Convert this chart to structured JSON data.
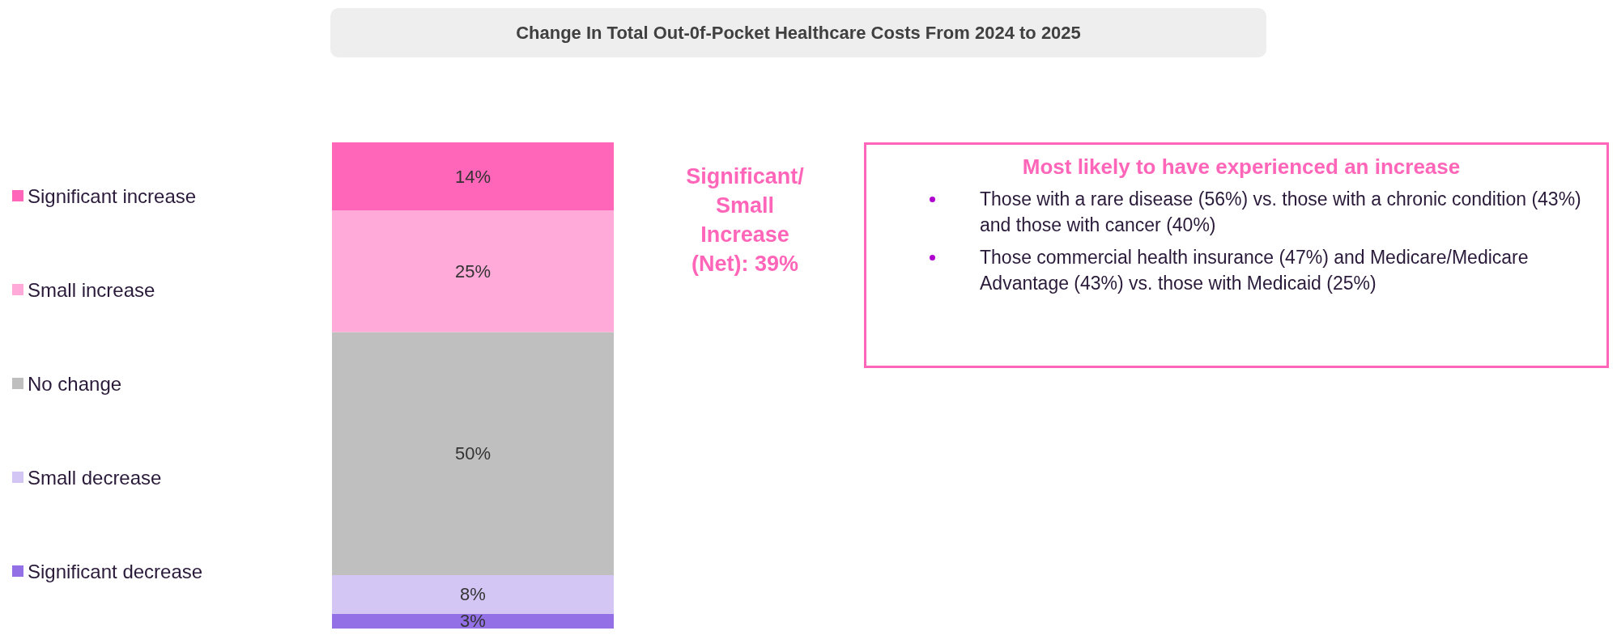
{
  "chart_data": {
    "type": "bar",
    "stacked": true,
    "title": "Change In Total Out-0f-Pocket Healthcare Costs From 2024 to 2025",
    "categories": [
      null
    ],
    "series": [
      {
        "name": "Significant decrease",
        "color": "#9370e6",
        "values": [
          3
        ],
        "value_labels": [
          "3%"
        ]
      },
      {
        "name": "Small decrease",
        "color": "#d3c6f5",
        "values": [
          8
        ],
        "value_labels": [
          "8%"
        ]
      },
      {
        "name": "No change",
        "color": "#bfbfbf",
        "values": [
          50
        ],
        "value_labels": [
          "50%"
        ]
      },
      {
        "name": "Small increase",
        "color": "#ffaad8",
        "values": [
          25
        ],
        "value_labels": [
          "25%"
        ]
      },
      {
        "name": "Significant increase",
        "color": "#ff66b9",
        "values": [
          14
        ],
        "value_labels": [
          "14%"
        ]
      }
    ],
    "legend": "left",
    "annotations": [
      "Significant/ Small Increase (Net): 39%",
      "Most likely to have experienced an increase",
      "Those with a rare disease (56%) vs. those with a chronic condition (43%) and those with cancer (40%)",
      "Those commercial health insurance (47%) and Medicare/Medicare Advantage (43%) vs. those with Medicaid (25%)"
    ]
  }
}
